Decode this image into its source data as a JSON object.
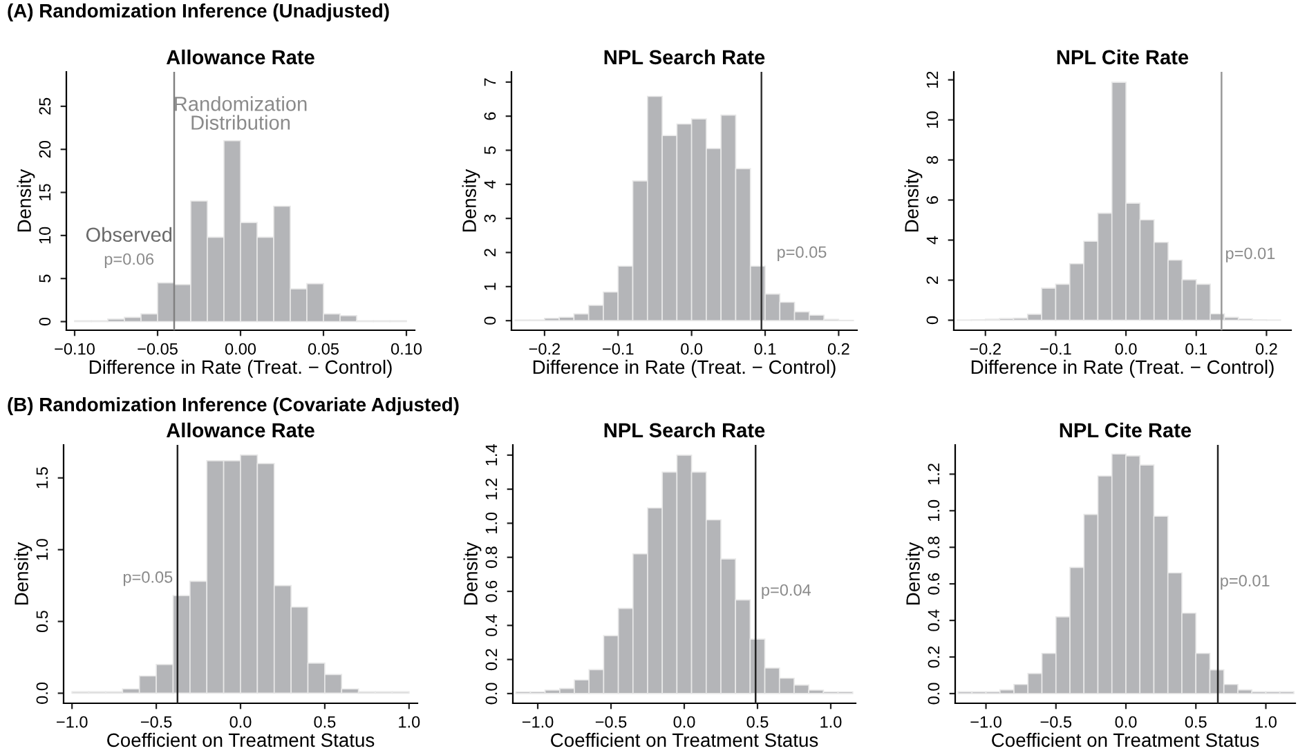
{
  "chart_data": [
    {
      "type": "histogram",
      "subtitle": "(A) Randomization Inference (Unadjusted)",
      "title": "Allowance Rate",
      "xlabel": "Difference in Rate (Treat. − Control)",
      "ylabel": "Density",
      "color": "#b4b5b8",
      "bins": [
        -0.1,
        -0.09,
        -0.08,
        -0.07,
        -0.06,
        -0.05,
        -0.04,
        -0.03,
        -0.02,
        -0.01,
        0,
        0.01,
        0.02,
        0.03,
        0.04,
        0.05,
        0.06,
        0.07,
        0.08,
        0.09,
        0.1
      ],
      "values": [
        0.1,
        0.1,
        0.3,
        0.5,
        0.9,
        4.5,
        4.3,
        14.0,
        9.8,
        21.0,
        11.5,
        9.8,
        13.4,
        3.8,
        4.4,
        0.9,
        0.7,
        0.1,
        0.1,
        0.1
      ],
      "xlim": [
        -0.105,
        0.105
      ],
      "ylim": [
        -1,
        29
      ],
      "xticks": [
        {
          "value": -0.1,
          "label": "−0.10"
        },
        {
          "value": -0.05,
          "label": "−0.05"
        },
        {
          "value": 0,
          "label": "0.00"
        },
        {
          "value": 0.05,
          "label": "0.05"
        },
        {
          "value": 0.1,
          "label": "0.10"
        }
      ],
      "yticks": [
        0,
        5,
        10,
        15,
        20,
        25
      ],
      "ref_lines": [
        {
          "axis": "x",
          "value": -0.04,
          "color": "#808080"
        }
      ],
      "annotations": [
        "Randomization\nDistribution",
        "Observed",
        "p=0.06"
      ]
    },
    {
      "type": "histogram",
      "title": "NPL Search Rate",
      "xlabel": "Difference in Rate (Treat. − Control)",
      "ylabel": "Density",
      "color": "#b4b5b8",
      "bins": [
        -0.24,
        -0.22,
        -0.2,
        -0.18,
        -0.16,
        -0.14,
        -0.12,
        -0.1,
        -0.08,
        -0.06,
        -0.04,
        -0.02,
        0,
        0.02,
        0.04,
        0.06,
        0.08,
        0.1,
        0.12,
        0.14,
        0.16,
        0.18,
        0.2,
        0.22
      ],
      "values": [
        0.02,
        0.02,
        0.07,
        0.1,
        0.2,
        0.45,
        0.84,
        1.6,
        4.1,
        6.58,
        5.43,
        5.77,
        5.92,
        5.05,
        6.03,
        4.46,
        1.6,
        0.78,
        0.54,
        0.26,
        0.16,
        0.04,
        0.01
      ],
      "xlim": [
        -0.245,
        0.225
      ],
      "ylim": [
        -0.28,
        7.3
      ],
      "xticks": [
        {
          "value": -0.2,
          "label": "−0.2"
        },
        {
          "value": -0.1,
          "label": "−0.1"
        },
        {
          "value": 0,
          "label": "0.0"
        },
        {
          "value": 0.1,
          "label": "0.1"
        },
        {
          "value": 0.2,
          "label": "0.2"
        }
      ],
      "yticks": [
        0,
        1,
        2,
        3,
        4,
        5,
        6,
        7
      ],
      "ref_lines": [
        {
          "axis": "x",
          "value": 0.095,
          "color": "#333333"
        }
      ],
      "annotations": [
        "p=0.05"
      ]
    },
    {
      "type": "histogram",
      "title": "NPL Cite Rate",
      "xlabel": "Difference in Rate (Treat. − Control)",
      "ylabel": "Density",
      "color": "#b4b5b8",
      "bins": [
        -0.24,
        -0.22,
        -0.2,
        -0.18,
        -0.16,
        -0.14,
        -0.12,
        -0.1,
        -0.08,
        -0.06,
        -0.04,
        -0.02,
        0,
        0.02,
        0.04,
        0.06,
        0.08,
        0.1,
        0.12,
        0.14,
        0.16,
        0.18,
        0.2,
        0.22
      ],
      "values": [
        0.01,
        0.02,
        0.05,
        0.08,
        0.1,
        0.3,
        1.6,
        1.8,
        2.82,
        3.94,
        5.34,
        11.88,
        5.84,
        5.01,
        3.89,
        3.0,
        2.02,
        1.8,
        0.32,
        0.14,
        0.07,
        0.02,
        0.01
      ],
      "xlim": [
        -0.245,
        0.235
      ],
      "ylim": [
        -0.5,
        12.4
      ],
      "xticks": [
        {
          "value": -0.2,
          "label": "−0.2"
        },
        {
          "value": -0.1,
          "label": "−0.1"
        },
        {
          "value": 0,
          "label": "0.0"
        },
        {
          "value": 0.1,
          "label": "0.1"
        },
        {
          "value": 0.2,
          "label": "0.2"
        }
      ],
      "yticks": [
        0,
        2,
        4,
        6,
        8,
        10,
        12
      ],
      "ref_lines": [
        {
          "axis": "x",
          "value": 0.136,
          "color": "#999999"
        }
      ],
      "annotations": [
        "p=0.01"
      ]
    },
    {
      "type": "histogram",
      "subtitle": "(B) Randomization Inference (Covariate Adjusted)",
      "title": "Allowance Rate",
      "xlabel": "Coefficient on Treatment Status",
      "ylabel": "Density",
      "color": "#b4b5b8",
      "bins": [
        -1,
        -0.9,
        -0.8,
        -0.7,
        -0.6,
        -0.5,
        -0.4,
        -0.3,
        -0.2,
        -0.1,
        0,
        0.1,
        0.2,
        0.3,
        0.4,
        0.5,
        0.6,
        0.7,
        0.8,
        0.9,
        1
      ],
      "values": [
        0.01,
        0.01,
        0.01,
        0.03,
        0.12,
        0.2,
        0.68,
        0.78,
        1.62,
        1.62,
        1.66,
        1.6,
        0.75,
        0.6,
        0.21,
        0.13,
        0.03,
        0.01,
        0.01,
        0.01
      ],
      "xlim": [
        -1.05,
        1.05
      ],
      "ylim": [
        -0.07,
        1.73
      ],
      "xticks": [
        {
          "value": -1,
          "label": "−1.0"
        },
        {
          "value": -0.5,
          "label": "−0.5"
        },
        {
          "value": 0,
          "label": "0.0"
        },
        {
          "value": 0.5,
          "label": "0.5"
        },
        {
          "value": 1,
          "label": "1.0"
        }
      ],
      "yticks": [
        {
          "value": 0,
          "label": "0.0"
        },
        {
          "value": 0.5,
          "label": "0.5"
        },
        {
          "value": 1,
          "label": "1.0"
        },
        {
          "value": 1.5,
          "label": "1.5"
        }
      ],
      "ref_lines": [
        {
          "axis": "x",
          "value": -0.374,
          "color": "#222222"
        }
      ],
      "annotations": [
        "p=0.05"
      ]
    },
    {
      "type": "histogram",
      "title": "NPL Search Rate",
      "xlabel": "Coefficient on Treatment Status",
      "ylabel": "Density",
      "color": "#b4b5b8",
      "bins": [
        -1.15,
        -1.05,
        -0.95,
        -0.85,
        -0.75,
        -0.65,
        -0.55,
        -0.45,
        -0.35,
        -0.25,
        -0.15,
        -0.05,
        0.05,
        0.15,
        0.25,
        0.35,
        0.45,
        0.55,
        0.65,
        0.75,
        0.85,
        0.95,
        1.05,
        1.15
      ],
      "values": [
        0.01,
        0.01,
        0.02,
        0.03,
        0.08,
        0.14,
        0.34,
        0.5,
        0.82,
        1.09,
        1.3,
        1.4,
        1.3,
        1.02,
        0.79,
        0.55,
        0.32,
        0.15,
        0.09,
        0.05,
        0.02,
        0.01,
        0.01
      ],
      "xlim": [
        -1.17,
        1.17
      ],
      "ylim": [
        -0.057,
        1.46
      ],
      "xticks": [
        {
          "value": -1,
          "label": "−1.0"
        },
        {
          "value": -0.5,
          "label": "−0.5"
        },
        {
          "value": 0,
          "label": "0.0"
        },
        {
          "value": 0.5,
          "label": "0.5"
        },
        {
          "value": 1,
          "label": "1.0"
        }
      ],
      "yticks": [
        {
          "value": 0,
          "label": "0.0"
        },
        {
          "value": 0.2,
          "label": "0.2"
        },
        {
          "value": 0.4,
          "label": "0.4"
        },
        {
          "value": 0.6,
          "label": "0.6"
        },
        {
          "value": 0.8,
          "label": "0.8"
        },
        {
          "value": 1,
          "label": "1.0"
        },
        {
          "value": 1.2,
          "label": "1.2"
        },
        {
          "value": 1.4,
          "label": "1.4"
        }
      ],
      "ref_lines": [
        {
          "axis": "x",
          "value": 0.487,
          "color": "#222222"
        }
      ],
      "annotations": [
        "p=0.04"
      ]
    },
    {
      "type": "histogram",
      "title": "NPL Cite Rate",
      "xlabel": "Coefficient on Treatment Status",
      "ylabel": "Density",
      "color": "#b4b5b8",
      "bins": [
        -1.2,
        -1.1,
        -1,
        -0.9,
        -0.8,
        -0.7,
        -0.6,
        -0.5,
        -0.4,
        -0.3,
        -0.2,
        -0.1,
        0,
        0.1,
        0.2,
        0.3,
        0.4,
        0.5,
        0.6,
        0.7,
        0.8,
        0.9,
        1,
        1.1,
        1.2
      ],
      "values": [
        0.01,
        0.01,
        0.01,
        0.02,
        0.05,
        0.11,
        0.22,
        0.42,
        0.69,
        0.98,
        1.19,
        1.31,
        1.3,
        1.25,
        0.97,
        0.66,
        0.44,
        0.22,
        0.13,
        0.05,
        0.02,
        0.01,
        0.01,
        0.01
      ],
      "xlim": [
        -1.22,
        1.21
      ],
      "ylim": [
        -0.053,
        1.36
      ],
      "xticks": [
        {
          "value": -1,
          "label": "−1.0"
        },
        {
          "value": -0.5,
          "label": "−0.5"
        },
        {
          "value": 0,
          "label": "0.0"
        },
        {
          "value": 0.5,
          "label": "0.5"
        },
        {
          "value": 1,
          "label": "1.0"
        }
      ],
      "yticks": [
        {
          "value": 0,
          "label": "0.0"
        },
        {
          "value": 0.2,
          "label": "0.2"
        },
        {
          "value": 0.4,
          "label": "0.4"
        },
        {
          "value": 0.6,
          "label": "0.6"
        },
        {
          "value": 0.8,
          "label": "0.8"
        },
        {
          "value": 1,
          "label": "1.0"
        },
        {
          "value": 1.2,
          "label": "1.2"
        }
      ],
      "ref_lines": [
        {
          "axis": "x",
          "value": 0.657,
          "color": "#222222"
        }
      ],
      "annotations": [
        "p=0.01"
      ]
    }
  ]
}
